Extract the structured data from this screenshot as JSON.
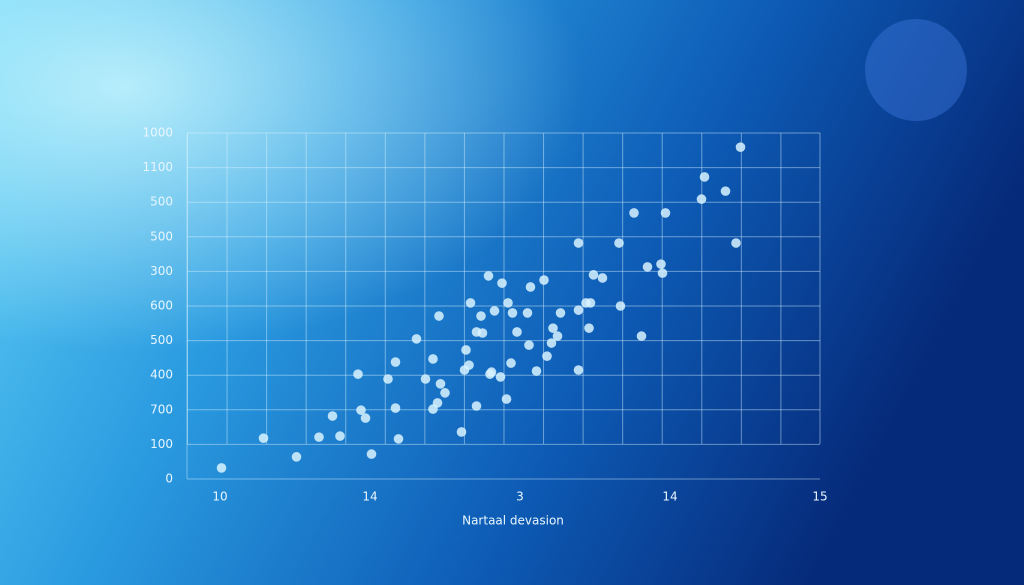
{
  "chart_data": {
    "type": "scatter",
    "x_label": "Nartaal devasion",
    "x": [
      1.01,
      1.29,
      1.51,
      1.66,
      1.75,
      1.8,
      1.92,
      1.94,
      1.97,
      2.01,
      2.12,
      2.17,
      2.17,
      2.19,
      2.31,
      2.37,
      2.42,
      2.42,
      2.45,
      2.47,
      2.46,
      2.5,
      2.61,
      2.63,
      2.64,
      2.66,
      2.67,
      2.71,
      2.71,
      2.74,
      2.75,
      2.79,
      2.8,
      2.81,
      2.83,
      2.87,
      2.88,
      2.91,
      2.92,
      2.94,
      2.95,
      2.98,
      3.05,
      3.06,
      3.07,
      3.11,
      3.16,
      3.18,
      3.21,
      3.22,
      3.25,
      3.27,
      3.39,
      3.39,
      3.39,
      3.44,
      3.47,
      3.46,
      3.49,
      3.55,
      3.66,
      3.67,
      3.76,
      3.81,
      3.85,
      3.94,
      3.95,
      3.97,
      4.21,
      4.23,
      4.37,
      4.44,
      4.47
    ],
    "values": [
      32,
      118,
      64,
      121,
      182,
      124,
      303,
      199,
      176,
      72,
      289,
      205,
      338,
      116,
      405,
      289,
      347,
      202,
      220,
      275,
      471,
      249,
      136,
      315,
      373,
      329,
      509,
      211,
      425,
      471,
      422,
      587,
      303,
      309,
      486,
      295,
      566,
      231,
      509,
      335,
      480,
      425,
      480,
      387,
      555,
      312,
      575,
      355,
      393,
      436,
      413,
      480,
      682,
      315,
      488,
      509,
      509,
      436,
      590,
      581,
      682,
      500,
      769,
      413,
      613,
      621,
      595,
      769,
      809,
      873,
      832,
      682,
      959
    ],
    "color": "#d8f3ff",
    "xlim": [
      0.78,
      5.0
    ],
    "xticks": [
      {
        "value": 1,
        "label": "10"
      },
      {
        "value": 2,
        "label": "14"
      },
      {
        "value": 3,
        "label": "3"
      },
      {
        "value": 4,
        "label": "14"
      },
      {
        "value": 5,
        "label": "15"
      }
    ],
    "ylim": [
      0,
      1000
    ],
    "yticks": [
      0,
      100,
      {
        "value": 200,
        "label": "700"
      },
      {
        "value": 300,
        "label": "400"
      },
      {
        "value": 400,
        "label": "500"
      },
      {
        "value": 500,
        "label": "600"
      },
      {
        "value": 600,
        "label": "300"
      },
      {
        "value": 700,
        "label": "500"
      },
      {
        "value": 800,
        "label": "500"
      },
      {
        "value": 900,
        "label": "1100"
      },
      1000
    ],
    "grid": true
  }
}
